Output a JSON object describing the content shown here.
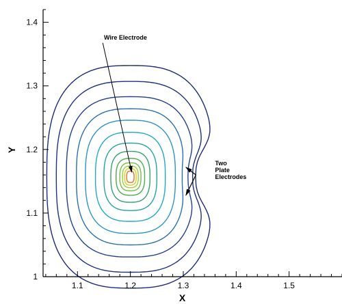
{
  "chart_data": {
    "type": "contour",
    "xlabel": "X",
    "ylabel": "Y",
    "xlim": [
      1.035,
      1.6
    ],
    "ylim": [
      1.0,
      1.42
    ],
    "x_ticks": [
      1.1,
      1.2,
      1.3,
      1.4,
      1.5
    ],
    "y_ticks": [
      1,
      1.1,
      1.2,
      1.3,
      1.4
    ],
    "center": [
      1.2,
      1.157
    ],
    "annotations": [
      {
        "lines": [
          "Wire Electrode"
        ],
        "x": 1.15,
        "y": 1.373,
        "target": [
          1.2,
          1.16
        ]
      },
      {
        "lines": [
          "Two",
          "Plate",
          "Electrodes"
        ],
        "x": 1.36,
        "y": 1.175,
        "targets": [
          [
            1.305,
            1.172
          ],
          [
            1.305,
            1.128
          ]
        ]
      }
    ],
    "contours": [
      {
        "rx": 0.007,
        "ry": 0.009,
        "dent": 0,
        "color": "#e8702a"
      },
      {
        "rx": 0.011,
        "ry": 0.013,
        "dent": 0,
        "color": "#d8d020"
      },
      {
        "rx": 0.015,
        "ry": 0.017,
        "dent": 0,
        "color": "#9ccf3a"
      },
      {
        "rx": 0.02,
        "ry": 0.022,
        "dent": 0,
        "color": "#6fbf45"
      },
      {
        "rx": 0.027,
        "ry": 0.029,
        "dent": 0,
        "color": "#4bab4f"
      },
      {
        "rx": 0.037,
        "ry": 0.04,
        "dent": 0,
        "color": "#34a06a"
      },
      {
        "rx": 0.05,
        "ry": 0.053,
        "dent": 0,
        "color": "#22a4a0"
      },
      {
        "rx": 0.066,
        "ry": 0.07,
        "dent": 0,
        "color": "#1fa9c9"
      },
      {
        "rx": 0.085,
        "ry": 0.089,
        "dent": 0,
        "color": "#2b94c9"
      },
      {
        "rx": 0.102,
        "ry": 0.107,
        "dent": 0.04,
        "color": "#2a6fb0"
      },
      {
        "rx": 0.121,
        "ry": 0.126,
        "dent": 0.1,
        "color": "#223f92"
      },
      {
        "rx": 0.14,
        "ry": 0.15,
        "dent": 0.16,
        "color": "#1e2f80"
      },
      {
        "rx": 0.158,
        "ry": 0.175,
        "dent": 0.22,
        "color": "#1c2a78"
      }
    ]
  }
}
